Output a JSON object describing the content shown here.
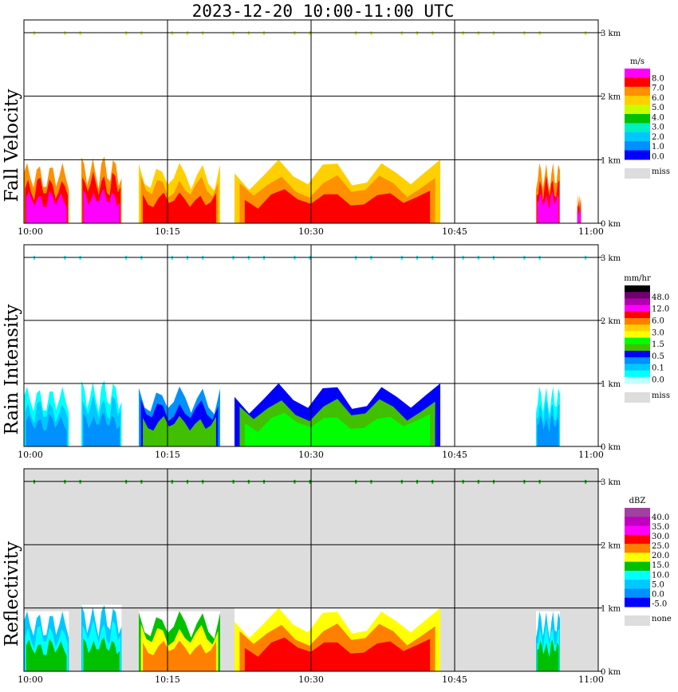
{
  "title": "2023-12-20  10:00-11:00 UTC",
  "time_ticks": [
    "10:00",
    "10:15",
    "10:30",
    "10:45",
    "11:00"
  ],
  "height_ticks": [
    "0 km",
    "1 km",
    "2 km",
    "3 km"
  ],
  "chart_data": [
    {
      "type": "heatmap",
      "panel": "Fall Velocity",
      "unit": "m/s",
      "x_range": [
        "10:00",
        "11:00"
      ],
      "y_range_km": [
        0,
        3.2
      ],
      "grid": true,
      "legend_placement": "right",
      "levels": [
        "8.0",
        "7.0",
        "6.0",
        "5.0",
        "4.0",
        "3.0",
        "2.0",
        "1.0",
        "0.0"
      ],
      "colors": [
        "#ff00ff",
        "#ff0000",
        "#ff9000",
        "#ffd000",
        "#c8ff00",
        "#00c000",
        "#00f0c0",
        "#00c8ff",
        "#0090ff",
        "#0000ff"
      ],
      "miss_label": "miss",
      "miss_color": "#dddddd",
      "echo_blocks": [
        {
          "t0": 0.0,
          "t1": 4.7,
          "top": 0.95,
          "lvl": 2
        },
        {
          "t0": 6.0,
          "t1": 10.2,
          "top": 1.05,
          "lvl": 2
        },
        {
          "t0": 12.0,
          "t1": 20.5,
          "top": 0.95,
          "lvl": 3
        },
        {
          "t0": 22.0,
          "t1": 43.5,
          "top": 1.0,
          "lvl": 3
        },
        {
          "t0": 53.5,
          "t1": 56.0,
          "top": 0.95,
          "lvl": 2
        },
        {
          "t0": 57.8,
          "t1": 58.2,
          "top": 0.45,
          "lvl": 2
        }
      ],
      "top_band_km": 3.0
    },
    {
      "type": "heatmap",
      "panel": "Rain Intensity",
      "unit": "mm/hr",
      "x_range": [
        "10:00",
        "11:00"
      ],
      "y_range_km": [
        0,
        3.2
      ],
      "grid": true,
      "legend_placement": "right",
      "levels": [
        "48.0",
        "12.0",
        "6.0",
        "3.0",
        "1.5",
        "0.5",
        "0.1",
        "0.0"
      ],
      "colors": [
        "#000000",
        "#700070",
        "#b000b0",
        "#ff00ff",
        "#ff0000",
        "#ff8000",
        "#ffd000",
        "#ffff00",
        "#00ff00",
        "#40c000",
        "#0000ff",
        "#0090ff",
        "#00c8ff",
        "#00ffff",
        "#c0ffff"
      ],
      "miss_label": "miss",
      "miss_color": "#dddddd",
      "echo_blocks": [
        {
          "t0": 0.0,
          "t1": 4.7,
          "top": 0.95,
          "lvl": 13
        },
        {
          "t0": 6.0,
          "t1": 10.2,
          "top": 1.05,
          "lvl": 13
        },
        {
          "t0": 12.0,
          "t1": 20.5,
          "top": 0.95,
          "lvl": 11
        },
        {
          "t0": 22.0,
          "t1": 43.5,
          "top": 1.0,
          "lvl": 10
        },
        {
          "t0": 53.5,
          "t1": 56.0,
          "top": 0.95,
          "lvl": 13
        }
      ],
      "top_band_km": 3.0
    },
    {
      "type": "heatmap",
      "panel": "Reflectivity",
      "unit": "dBZ",
      "x_range": [
        "10:00",
        "11:00"
      ],
      "y_range_km": [
        0,
        3.2
      ],
      "grid": true,
      "legend_placement": "right",
      "levels": [
        "40.0",
        "35.0",
        "30.0",
        "25.0",
        "20.0",
        "15.0",
        "10.0",
        "5.0",
        "0.0",
        "-5.0"
      ],
      "colors": [
        "#a040a0",
        "#c000c0",
        "#ff00ff",
        "#ff0000",
        "#ff8000",
        "#ffff00",
        "#00c000",
        "#00ffff",
        "#00c8ff",
        "#0090ff",
        "#0000ff"
      ],
      "miss_label": "none",
      "miss_color": "#dddddd",
      "echo_blocks": [
        {
          "t0": 0.0,
          "t1": 4.7,
          "top": 0.95,
          "lvl": 8
        },
        {
          "t0": 6.0,
          "t1": 10.2,
          "top": 1.05,
          "lvl": 8
        },
        {
          "t0": 12.0,
          "t1": 20.5,
          "top": 0.95,
          "lvl": 6
        },
        {
          "t0": 22.0,
          "t1": 43.5,
          "top": 1.0,
          "lvl": 5
        },
        {
          "t0": 53.5,
          "t1": 56.0,
          "top": 0.95,
          "lvl": 8
        }
      ],
      "top_band_km": 3.0
    }
  ]
}
